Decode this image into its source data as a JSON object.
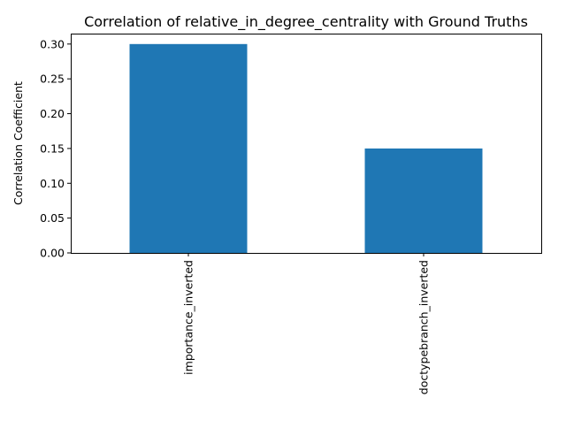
{
  "chart_data": {
    "type": "bar",
    "title": "Correlation of relative_in_degree_centrality with Ground Truths",
    "xlabel": "",
    "ylabel": "Correlation Coefficient",
    "categories": [
      "importance_inverted",
      "doctypebranch_inverted"
    ],
    "values": [
      0.3,
      0.15
    ],
    "ylim": [
      0,
      0.315
    ],
    "yticks": [
      0.0,
      0.05,
      0.1,
      0.15,
      0.2,
      0.25,
      0.3
    ],
    "ytick_labels": [
      "0.00",
      "0.05",
      "0.10",
      "0.15",
      "0.20",
      "0.25",
      "0.30"
    ],
    "grid": false,
    "legend": "none",
    "bar_color": "#1f77b4"
  }
}
